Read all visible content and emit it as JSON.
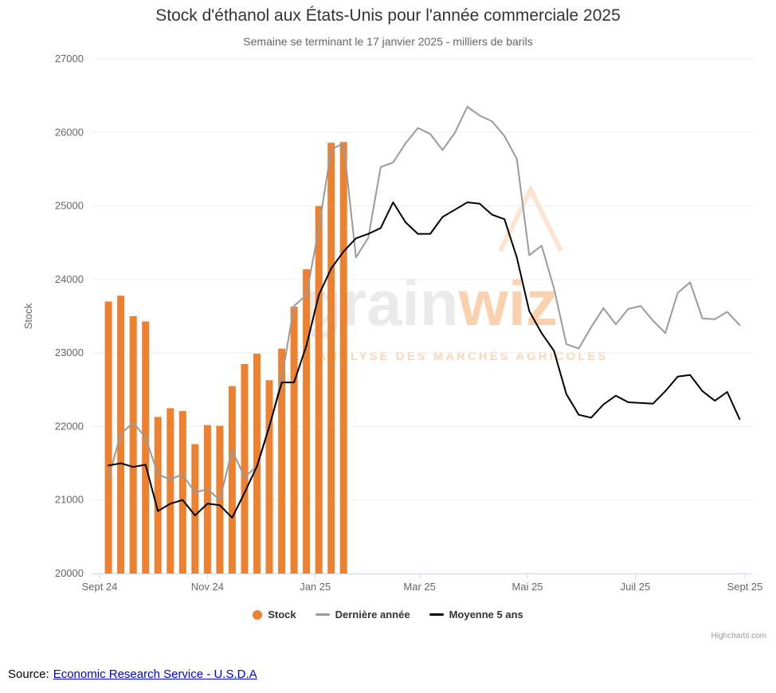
{
  "legend": {
    "items": [
      {
        "name": "stock",
        "label": "Stock",
        "marker": "circle",
        "color": "#ee8130"
      },
      {
        "name": "last-year",
        "label": "Dernière année",
        "marker": "line",
        "color": "#9a9a9a"
      },
      {
        "name": "five-year-avg",
        "label": "Moyenne 5 ans",
        "marker": "line",
        "color": "#000000"
      }
    ]
  },
  "credits": {
    "label": "Highcharts.com"
  },
  "source": {
    "prefix": "Source:",
    "link_text": "Economic Research Service - U.S.D.A"
  },
  "watermark": {
    "word_light": "grain",
    "word_accent": "wiz",
    "tagline": "ET ANALYSE DES MARCHÉS AGRICOLES"
  },
  "chart_data": {
    "type": "combo",
    "title": "Stock d'éthanol aux États-Unis pour l'année commerciale 2025",
    "subtitle": "Semaine se terminant le 17 janvier 2025 - milliers de barils",
    "ylabel": "Stock",
    "unit": "milliers de barils",
    "ylim": [
      20000,
      27000
    ],
    "ytick_interval": 1000,
    "grid": "horizontal-faint",
    "legend_position": "bottom",
    "x_domain_days": [
      0,
      365
    ],
    "xaxis_ticks": [
      {
        "day": 0,
        "label": "Sept 24"
      },
      {
        "day": 61,
        "label": "Nov 24"
      },
      {
        "day": 122,
        "label": "Jan 25"
      },
      {
        "day": 181,
        "label": "Mar 25"
      },
      {
        "day": 242,
        "label": "Mai 25"
      },
      {
        "day": 303,
        "label": "Juil 25"
      },
      {
        "day": 365,
        "label": "Sept 25"
      }
    ],
    "series": [
      {
        "name": "Stock",
        "type": "bar",
        "color": "#ee8130",
        "points": [
          [
            5,
            23700
          ],
          [
            12,
            23780
          ],
          [
            19,
            23500
          ],
          [
            26,
            23430
          ],
          [
            33,
            22130
          ],
          [
            40,
            22250
          ],
          [
            47,
            22210
          ],
          [
            54,
            21760
          ],
          [
            61,
            22020
          ],
          [
            68,
            22010
          ],
          [
            75,
            22550
          ],
          [
            82,
            22850
          ],
          [
            89,
            22990
          ],
          [
            96,
            22630
          ],
          [
            103,
            23060
          ],
          [
            110,
            23630
          ],
          [
            117,
            24140
          ],
          [
            124,
            25000
          ],
          [
            131,
            25860
          ],
          [
            138,
            25870
          ]
        ]
      },
      {
        "name": "Dernière année",
        "type": "line",
        "color": "#9a9a9a",
        "points": [
          [
            5,
            21300
          ],
          [
            12,
            21900
          ],
          [
            19,
            22050
          ],
          [
            26,
            21850
          ],
          [
            33,
            21350
          ],
          [
            40,
            21280
          ],
          [
            47,
            21350
          ],
          [
            54,
            21100
          ],
          [
            61,
            21150
          ],
          [
            68,
            21000
          ],
          [
            75,
            21680
          ],
          [
            82,
            21310
          ],
          [
            89,
            21460
          ],
          [
            96,
            21980
          ],
          [
            103,
            22650
          ],
          [
            110,
            23640
          ],
          [
            117,
            23790
          ],
          [
            124,
            24700
          ],
          [
            131,
            25770
          ],
          [
            138,
            25850
          ],
          [
            145,
            24300
          ],
          [
            152,
            24570
          ],
          [
            159,
            25530
          ],
          [
            166,
            25590
          ],
          [
            173,
            25850
          ],
          [
            180,
            26060
          ],
          [
            187,
            25980
          ],
          [
            194,
            25760
          ],
          [
            201,
            26000
          ],
          [
            208,
            26350
          ],
          [
            215,
            26230
          ],
          [
            222,
            26150
          ],
          [
            229,
            25950
          ],
          [
            236,
            25640
          ],
          [
            243,
            24330
          ],
          [
            250,
            24460
          ],
          [
            257,
            23880
          ],
          [
            264,
            23120
          ],
          [
            271,
            23060
          ],
          [
            278,
            23350
          ],
          [
            285,
            23610
          ],
          [
            292,
            23390
          ],
          [
            299,
            23600
          ],
          [
            306,
            23640
          ],
          [
            313,
            23440
          ],
          [
            320,
            23270
          ],
          [
            327,
            23820
          ],
          [
            334,
            23960
          ],
          [
            341,
            23470
          ],
          [
            348,
            23460
          ],
          [
            355,
            23560
          ],
          [
            362,
            23380
          ]
        ]
      },
      {
        "name": "Moyenne 5 ans",
        "type": "line",
        "color": "#000000",
        "points": [
          [
            5,
            21470
          ],
          [
            12,
            21500
          ],
          [
            19,
            21450
          ],
          [
            26,
            21480
          ],
          [
            33,
            20850
          ],
          [
            40,
            20950
          ],
          [
            47,
            21000
          ],
          [
            54,
            20790
          ],
          [
            61,
            20950
          ],
          [
            68,
            20930
          ],
          [
            75,
            20760
          ],
          [
            82,
            21100
          ],
          [
            89,
            21460
          ],
          [
            96,
            22000
          ],
          [
            103,
            22600
          ],
          [
            110,
            22600
          ],
          [
            117,
            23100
          ],
          [
            124,
            23790
          ],
          [
            131,
            24150
          ],
          [
            138,
            24380
          ],
          [
            145,
            24560
          ],
          [
            152,
            24620
          ],
          [
            159,
            24700
          ],
          [
            166,
            25050
          ],
          [
            173,
            24780
          ],
          [
            180,
            24620
          ],
          [
            187,
            24620
          ],
          [
            194,
            24850
          ],
          [
            201,
            24950
          ],
          [
            208,
            25050
          ],
          [
            215,
            25030
          ],
          [
            222,
            24880
          ],
          [
            229,
            24820
          ],
          [
            236,
            24300
          ],
          [
            243,
            23570
          ],
          [
            250,
            23270
          ],
          [
            257,
            23030
          ],
          [
            264,
            22440
          ],
          [
            271,
            22160
          ],
          [
            278,
            22120
          ],
          [
            285,
            22300
          ],
          [
            292,
            22420
          ],
          [
            299,
            22330
          ],
          [
            306,
            22320
          ],
          [
            313,
            22310
          ],
          [
            320,
            22480
          ],
          [
            327,
            22680
          ],
          [
            334,
            22700
          ],
          [
            341,
            22480
          ],
          [
            348,
            22350
          ],
          [
            355,
            22470
          ],
          [
            362,
            22100
          ]
        ]
      }
    ]
  }
}
